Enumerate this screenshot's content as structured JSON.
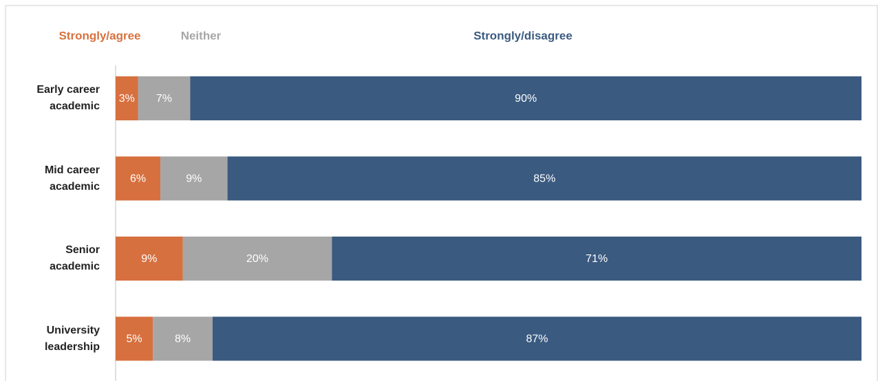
{
  "chart_data": {
    "type": "stacked_bar_horizontal",
    "categories": [
      "Early career academic",
      "Mid career academic",
      "Senior academic",
      "University leadership"
    ],
    "series": [
      {
        "name": "Strongly/agree",
        "color": "#d7703f",
        "values": [
          3,
          6,
          9,
          5
        ],
        "value_labels": [
          "3%",
          "6%",
          "9%",
          "5%"
        ]
      },
      {
        "name": "Neither",
        "color": "#a6a6a6",
        "values": [
          7,
          9,
          20,
          8
        ],
        "value_labels": [
          "7%",
          "9%",
          "20%",
          "8%"
        ]
      },
      {
        "name": "Strongly/disagree",
        "color": "#3a5a80",
        "values": [
          90,
          85,
          71,
          87
        ],
        "value_labels": [
          "90%",
          "85%",
          "71%",
          "87%"
        ]
      }
    ],
    "xlim": [
      0,
      100
    ]
  }
}
